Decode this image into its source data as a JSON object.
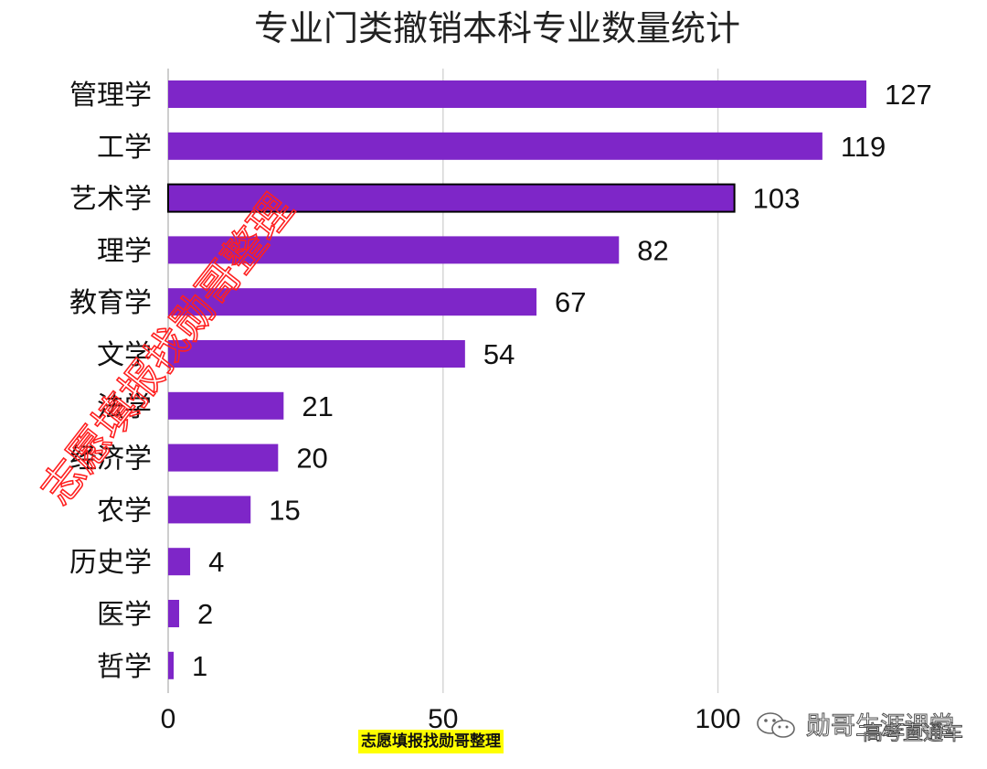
{
  "chart_data": {
    "type": "bar",
    "orientation": "horizontal",
    "title": "专业门类撤销本科专业数量统计",
    "categories": [
      "管理学",
      "工学",
      "艺术学",
      "理学",
      "教育学",
      "文学",
      "法学",
      "经济学",
      "农学",
      "历史学",
      "医学",
      "哲学"
    ],
    "values": [
      127,
      119,
      103,
      82,
      67,
      54,
      21,
      20,
      15,
      4,
      2,
      1
    ],
    "value_labels": [
      "127",
      "119",
      "103",
      "82",
      "67",
      "54",
      "21",
      "20",
      "15",
      "4",
      "2",
      "1"
    ],
    "xlim": [
      0,
      127
    ],
    "x_ticks": [
      0,
      50,
      100
    ],
    "x_tick_labels": [
      "0",
      "50",
      "100"
    ],
    "xlabel": "",
    "ylabel": "",
    "grid": "vertical",
    "highlighted_category": "艺术学",
    "colors": {
      "bar": "#7e26c8",
      "highlight_outline": "#000000",
      "grid": "#d6d6d6"
    }
  },
  "watermark": {
    "text": "志愿填报找勋哥整理",
    "color": "#ff2020"
  },
  "credit": {
    "text": "志愿填报找勋哥整理",
    "background": "#ffff00"
  },
  "brand": {
    "icon": "wechat-icon",
    "name": "勋哥生涯课堂",
    "secondary": "高考直通车"
  }
}
